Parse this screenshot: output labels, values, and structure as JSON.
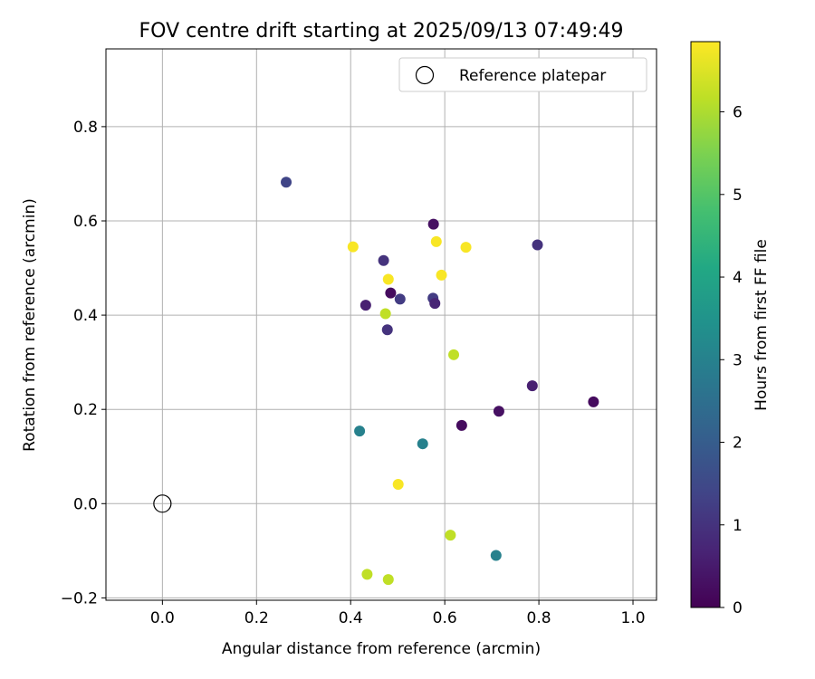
{
  "chart_data": {
    "type": "scatter",
    "title": "FOV centre drift starting at 2025/09/13 07:49:49",
    "xlabel": "Angular distance from reference (arcmin)",
    "ylabel": "Rotation from reference (arcmin)",
    "xlim": [
      -0.12,
      1.05
    ],
    "ylim": [
      -0.205,
      0.965
    ],
    "xticks": [
      0.0,
      0.2,
      0.4,
      0.6,
      0.8,
      1.0
    ],
    "xtick_labels": [
      "0.0",
      "0.2",
      "0.4",
      "0.6",
      "0.8",
      "1.0"
    ],
    "yticks": [
      -0.2,
      0.0,
      0.2,
      0.4,
      0.6,
      0.8
    ],
    "ytick_labels": [
      "−0.2",
      "0.0",
      "0.2",
      "0.4",
      "0.6",
      "0.8"
    ],
    "grid": true,
    "legend": {
      "placement": "top-right",
      "entries": [
        {
          "label": "Reference platepar",
          "marker": "open-circle"
        }
      ]
    },
    "reference_point": {
      "x": 0.0,
      "y": 0.0
    },
    "colorbar": {
      "label": "Hours from first FF file",
      "colormap": "viridis",
      "range": [
        0,
        6.85
      ],
      "ticks": [
        0,
        1,
        2,
        3,
        4,
        5,
        6
      ],
      "tick_labels": [
        "0",
        "1",
        "2",
        "3",
        "4",
        "5",
        "6"
      ]
    },
    "points": [
      {
        "x": 0.263,
        "y": 0.682,
        "hours": 1.4
      },
      {
        "x": 0.576,
        "y": 0.593,
        "hours": 0.3
      },
      {
        "x": 0.405,
        "y": 0.545,
        "hours": 6.8
      },
      {
        "x": 0.582,
        "y": 0.556,
        "hours": 6.8
      },
      {
        "x": 0.645,
        "y": 0.544,
        "hours": 6.8
      },
      {
        "x": 0.797,
        "y": 0.549,
        "hours": 1.0
      },
      {
        "x": 0.47,
        "y": 0.516,
        "hours": 1.0
      },
      {
        "x": 0.48,
        "y": 0.476,
        "hours": 6.8
      },
      {
        "x": 0.593,
        "y": 0.485,
        "hours": 6.8
      },
      {
        "x": 0.485,
        "y": 0.447,
        "hours": 0.2
      },
      {
        "x": 0.505,
        "y": 0.434,
        "hours": 1.2
      },
      {
        "x": 0.575,
        "y": 0.436,
        "hours": 1.2
      },
      {
        "x": 0.579,
        "y": 0.425,
        "hours": 0.7
      },
      {
        "x": 0.432,
        "y": 0.421,
        "hours": 0.6
      },
      {
        "x": 0.474,
        "y": 0.403,
        "hours": 6.2
      },
      {
        "x": 0.478,
        "y": 0.369,
        "hours": 1.0
      },
      {
        "x": 0.619,
        "y": 0.316,
        "hours": 6.2
      },
      {
        "x": 0.786,
        "y": 0.25,
        "hours": 0.6
      },
      {
        "x": 0.916,
        "y": 0.216,
        "hours": 0.2
      },
      {
        "x": 0.715,
        "y": 0.196,
        "hours": 0.3
      },
      {
        "x": 0.636,
        "y": 0.166,
        "hours": 0.2
      },
      {
        "x": 0.419,
        "y": 0.154,
        "hours": 3.0
      },
      {
        "x": 0.553,
        "y": 0.127,
        "hours": 3.0
      },
      {
        "x": 0.501,
        "y": 0.041,
        "hours": 6.8
      },
      {
        "x": 0.612,
        "y": -0.067,
        "hours": 6.2
      },
      {
        "x": 0.709,
        "y": -0.11,
        "hours": 3.0
      },
      {
        "x": 0.435,
        "y": -0.15,
        "hours": 6.2
      },
      {
        "x": 0.48,
        "y": -0.161,
        "hours": 6.2
      }
    ]
  }
}
